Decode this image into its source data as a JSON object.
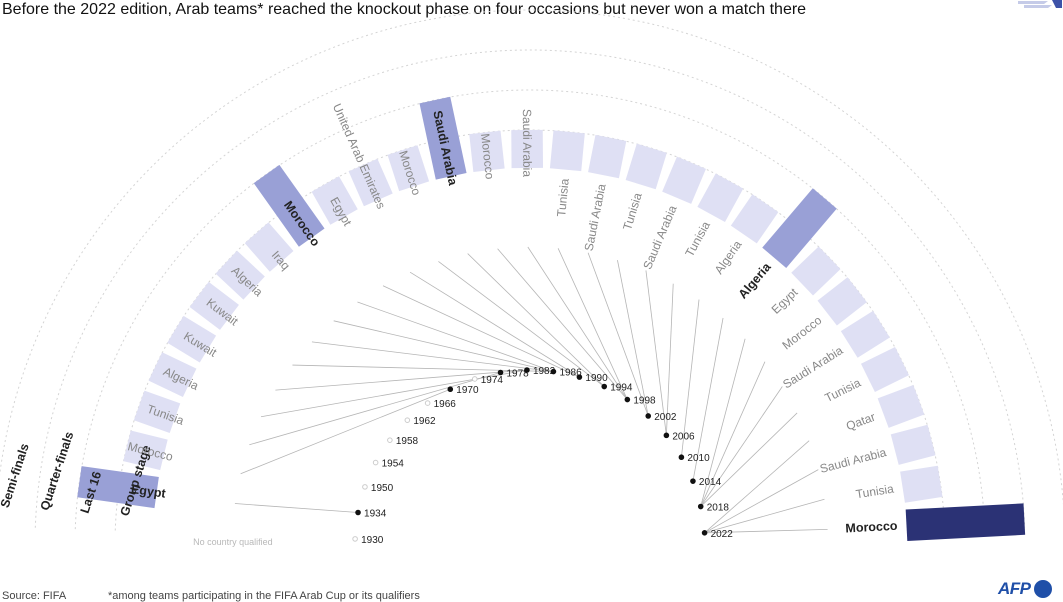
{
  "title": "Before the 2022 edition, Arab teams* reached the knockout phase on four occasions but never won a match there",
  "source": "Source: FIFA",
  "footnote": "*among teams participating in the FIFA Arab Cup or its qualifiers",
  "logo_text": "AFP",
  "colors": {
    "group_stage": "#dfe0f4",
    "knockout": "#99a0d6",
    "quarter": "#2b3275",
    "ring": "#d4d4d4",
    "leader": "#b5b5b5"
  },
  "chart_data": {
    "type": "radial-bar",
    "levels": [
      "Group stage",
      "Last 16",
      "Quarter-finals",
      "Semi-finals"
    ],
    "no_country_label": "No country qualified",
    "editions": [
      {
        "year": "1930",
        "teams": []
      },
      {
        "year": "1934",
        "teams": [
          {
            "name": "Egypt",
            "stage": 1,
            "highlight": true
          }
        ]
      },
      {
        "year": "1950",
        "teams": []
      },
      {
        "year": "1954",
        "teams": []
      },
      {
        "year": "1958",
        "teams": []
      },
      {
        "year": "1962",
        "teams": []
      },
      {
        "year": "1966",
        "teams": []
      },
      {
        "year": "1970",
        "teams": [
          {
            "name": "Morocco",
            "stage": 0
          }
        ]
      },
      {
        "year": "1974",
        "teams": []
      },
      {
        "year": "1978",
        "teams": [
          {
            "name": "Tunisia",
            "stage": 0
          }
        ]
      },
      {
        "year": "1982",
        "teams": [
          {
            "name": "Algeria",
            "stage": 0
          },
          {
            "name": "Kuwait",
            "stage": 0
          }
        ]
      },
      {
        "year": "1986",
        "teams": [
          {
            "name": "Kuwait",
            "stage": 0
          },
          {
            "name": "Algeria",
            "stage": 0
          },
          {
            "name": "Iraq",
            "stage": 0
          },
          {
            "name": "Morocco",
            "stage": 1,
            "highlight": true
          }
        ]
      },
      {
        "year": "1990",
        "teams": [
          {
            "name": "Egypt",
            "stage": 0
          },
          {
            "name": "United Arab Emirates",
            "stage": 0
          }
        ]
      },
      {
        "year": "1994",
        "teams": [
          {
            "name": "Morocco",
            "stage": 0
          },
          {
            "name": "Saudi Arabia",
            "stage": 1,
            "highlight": true
          }
        ]
      },
      {
        "year": "1998",
        "teams": [
          {
            "name": "Morocco",
            "stage": 0
          },
          {
            "name": "Saudi Arabia",
            "stage": 0
          },
          {
            "name": "Tunisia",
            "stage": 0
          }
        ]
      },
      {
        "year": "2002",
        "teams": [
          {
            "name": "Saudi Arabia",
            "stage": 0
          },
          {
            "name": "Tunisia",
            "stage": 0
          }
        ]
      },
      {
        "year": "2006",
        "teams": [
          {
            "name": "Saudi Arabia",
            "stage": 0
          },
          {
            "name": "Tunisia",
            "stage": 0
          }
        ]
      },
      {
        "year": "2010",
        "teams": [
          {
            "name": "Algeria",
            "stage": 0
          }
        ]
      },
      {
        "year": "2014",
        "teams": [
          {
            "name": "Algeria",
            "stage": 1,
            "highlight": true
          }
        ]
      },
      {
        "year": "2018",
        "teams": [
          {
            "name": "Egypt",
            "stage": 0
          },
          {
            "name": "Morocco",
            "stage": 0
          },
          {
            "name": "Saudi Arabia",
            "stage": 0
          },
          {
            "name": "Tunisia",
            "stage": 0
          }
        ]
      },
      {
        "year": "2022",
        "teams": [
          {
            "name": "Qatar",
            "stage": 0
          },
          {
            "name": "Saudi Arabia",
            "stage": 0
          },
          {
            "name": "Tunisia",
            "stage": 0
          },
          {
            "name": "Morocco",
            "stage": 2,
            "highlight": true
          }
        ]
      }
    ]
  }
}
